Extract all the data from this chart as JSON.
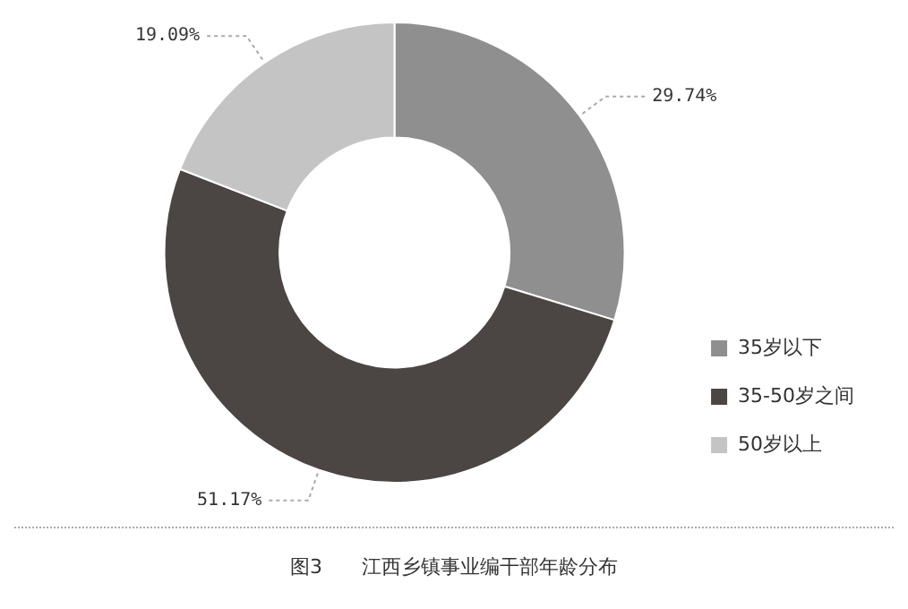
{
  "chart_data": {
    "type": "donut",
    "title": "图3　　江西乡镇事业编干部年龄分布",
    "categories": [
      "35岁以下",
      "35-50岁之间",
      "50岁以上"
    ],
    "values": [
      29.74,
      51.17,
      19.09
    ],
    "colors": [
      "#8f8f8f",
      "#4b4644",
      "#c4c4c4"
    ],
    "value_labels": [
      "29.74%",
      "51.17%",
      "19.09%"
    ],
    "legend": "right"
  }
}
